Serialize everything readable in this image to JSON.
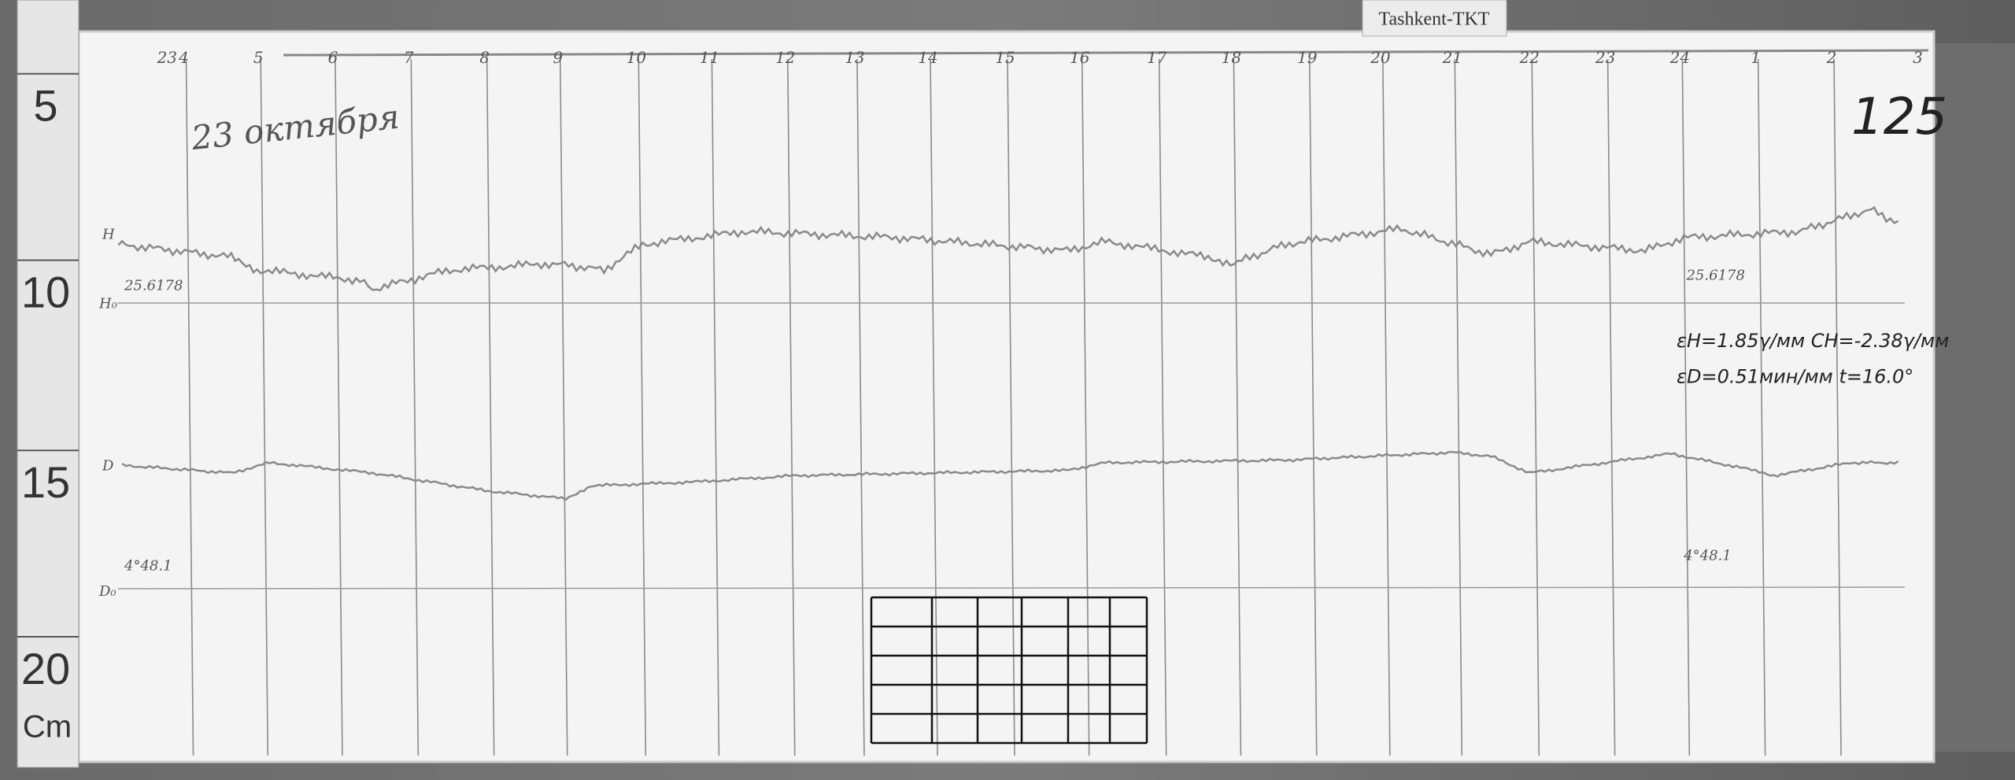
{
  "label_tag": "Tashkent-TKT",
  "ruler": {
    "marks": [
      "5",
      "10",
      "15",
      "20"
    ],
    "unit": "Cm"
  },
  "sheet": {
    "date_note": "23 октября",
    "number": "125",
    "hours": [
      "23",
      "4",
      "5",
      "6",
      "7",
      "8",
      "9",
      "10",
      "11",
      "12",
      "13",
      "14",
      "15",
      "16",
      "17",
      "18",
      "19",
      "20",
      "21",
      "22",
      "23",
      "24",
      "1",
      "2",
      "3"
    ],
    "traces": [
      {
        "label": "H",
        "baseline_label": "H₀",
        "scale_left": "25.6178",
        "scale_right": "25.6178"
      },
      {
        "label": "D",
        "baseline_label": "D₀",
        "scale_left": "4°48.1",
        "scale_right": "4°48.1"
      }
    ],
    "constants": [
      "εH=1.85γ/мм  CH=-2.38γ/мм",
      "εD=0.51мин/мм  t=16.0°"
    ]
  }
}
